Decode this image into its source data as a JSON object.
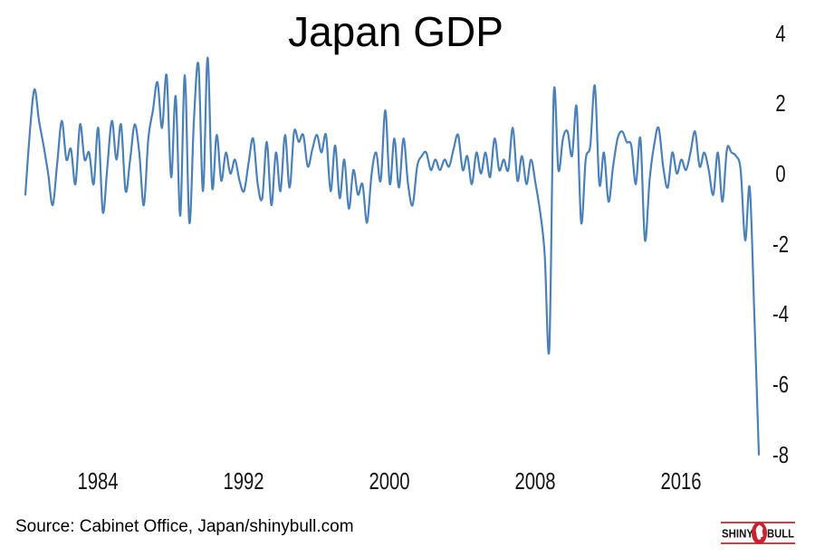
{
  "footer": {
    "source_text": "Source: Cabinet Office, Japan/shinybull.com"
  },
  "logo": {
    "first_word": "SHINY",
    "second_word": "BULL",
    "accent_color": "#c8232c",
    "text_color": "#141414"
  },
  "chart_data": {
    "type": "line",
    "title": "Japan GDP",
    "xlabel": "",
    "ylabel": "",
    "x_start": "1980 Q1",
    "x_end": "2020 Q2",
    "frequency": "quarterly",
    "x_ticks": [
      1984,
      1992,
      2000,
      2008,
      2016
    ],
    "y_ticks": [
      4,
      2,
      0,
      -2,
      -4,
      -6,
      -8
    ],
    "ylim": [
      -8.4,
      4.4
    ],
    "grid": false,
    "legend": "none",
    "line_color": "#4a81b8",
    "values": [
      -0.6,
      1.2,
      2.4,
      1.5,
      0.8,
      0.0,
      -0.9,
      0.3,
      1.5,
      0.4,
      0.7,
      -0.3,
      1.4,
      0.4,
      0.6,
      -0.3,
      1.3,
      -1.1,
      0.2,
      1.5,
      0.4,
      1.4,
      -0.5,
      0.4,
      1.4,
      0.6,
      -0.9,
      1.0,
      1.8,
      2.6,
      1.3,
      2.8,
      -0.1,
      2.2,
      -1.2,
      2.8,
      -1.4,
      1.5,
      3.1,
      -0.5,
      3.3,
      -0.4,
      1.1,
      -0.2,
      0.6,
      0.0,
      0.4,
      -0.2,
      -0.5,
      0.3,
      1.0,
      -0.3,
      -0.7,
      0.9,
      -0.9,
      0.6,
      -0.5,
      1.1,
      -0.4,
      1.2,
      0.9,
      1.1,
      0.2,
      0.7,
      1.1,
      0.6,
      1.1,
      -0.5,
      0.8,
      -0.7,
      0.4,
      -1.0,
      0.1,
      -0.6,
      -0.3,
      -1.4,
      0.0,
      0.6,
      -0.2,
      1.8,
      -0.3,
      1.0,
      -0.4,
      1.0,
      -0.3,
      -0.9,
      0.2,
      0.5,
      0.6,
      0.1,
      0.4,
      0.1,
      0.4,
      0.2,
      0.7,
      1.1,
      0.1,
      0.5,
      -0.3,
      0.6,
      0.0,
      0.6,
      -0.1,
      1.0,
      0.1,
      0.4,
      0.1,
      1.3,
      -0.2,
      0.5,
      -0.3,
      0.4,
      -0.3,
      -1.1,
      -2.3,
      -5.0,
      2.3,
      0.1,
      1.0,
      1.2,
      0.5,
      1.9,
      -1.4,
      0.4,
      0.8,
      2.5,
      -0.3,
      0.6,
      -0.8,
      0.2,
      1.0,
      1.2,
      0.9,
      0.8,
      -0.3,
      1.0,
      -1.9,
      -0.2,
      0.8,
      1.3,
      0.2,
      -0.4,
      0.6,
      0.0,
      0.4,
      0.1,
      0.6,
      1.2,
      0.2,
      0.6,
      0.1,
      -0.6,
      0.6,
      -0.8,
      0.7,
      0.6,
      0.5,
      0.1,
      -1.9,
      -0.4,
      -4.0,
      -8.0
    ]
  }
}
